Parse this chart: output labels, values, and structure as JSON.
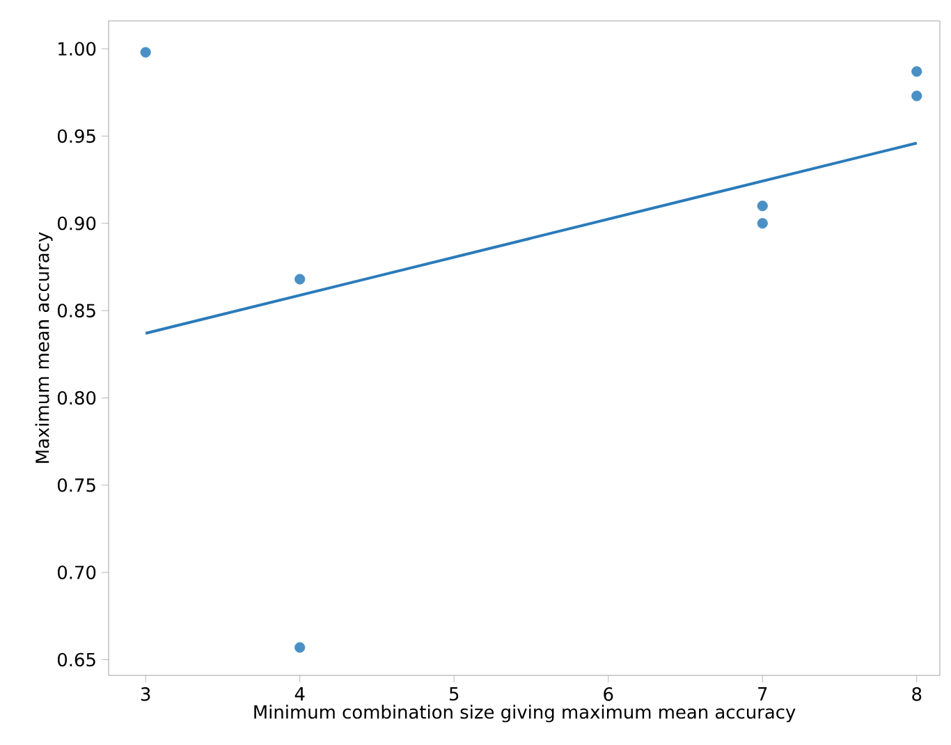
{
  "chart_data": {
    "type": "scatter",
    "xlabel": "Minimum combination size giving maximum mean accuracy",
    "ylabel": "Maximum mean accuracy",
    "xlim": [
      2.76,
      8.15
    ],
    "xticks": [
      3,
      4,
      5,
      6,
      7,
      8
    ],
    "ylim": [
      0.641,
      1.016
    ],
    "yticks": [
      {
        "value": 0.65,
        "label": "0.65"
      },
      {
        "value": 0.7,
        "label": "0.70"
      },
      {
        "value": 0.75,
        "label": "0.75"
      },
      {
        "value": 0.8,
        "label": "0.80"
      },
      {
        "value": 0.85,
        "label": "0.85"
      },
      {
        "value": 0.9,
        "label": "0.90"
      },
      {
        "value": 0.95,
        "label": "0.95"
      },
      {
        "value": 1.0,
        "label": "1.00"
      }
    ],
    "marker": "circle",
    "series": [
      {
        "color": "#4a90c4",
        "x": [
          3,
          4,
          4,
          7,
          7,
          8,
          8
        ],
        "values": [
          0.998,
          0.868,
          0.657,
          0.91,
          0.9,
          0.987,
          0.973
        ]
      },
      {
        "type": "line",
        "marker": "none",
        "color": "#2b7bba",
        "x": [
          3,
          8
        ],
        "values": [
          0.837,
          0.946
        ]
      }
    ]
  }
}
